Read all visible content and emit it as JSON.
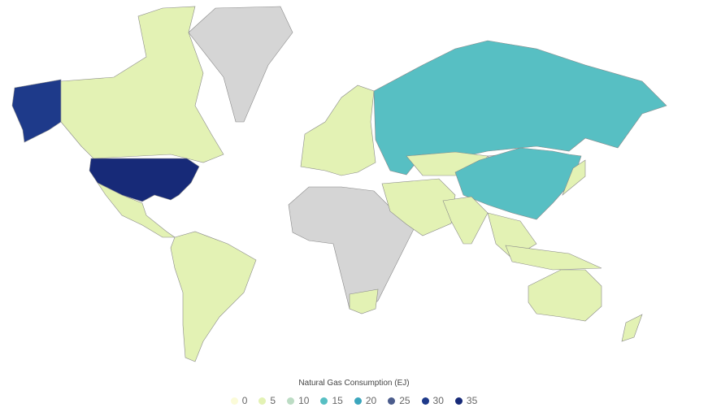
{
  "map": {
    "no_data_color": "#d5d5d5",
    "regions": [
      {
        "name": "Alaska",
        "bin": 30
      },
      {
        "name": "Canada",
        "bin": 5
      },
      {
        "name": "Greenland",
        "bin": null
      },
      {
        "name": "United States",
        "bin": 35
      },
      {
        "name": "Mexico & Central America",
        "bin": 5
      },
      {
        "name": "South America",
        "bin": 5
      },
      {
        "name": "Europe",
        "bin": 5
      },
      {
        "name": "Africa",
        "bin": null
      },
      {
        "name": "South Africa",
        "bin": 5
      },
      {
        "name": "Russia",
        "bin": 15
      },
      {
        "name": "Central Asia",
        "bin": 5
      },
      {
        "name": "Mongolia",
        "bin": null
      },
      {
        "name": "China",
        "bin": 15
      },
      {
        "name": "Middle East",
        "bin": 5
      },
      {
        "name": "India",
        "bin": 5
      },
      {
        "name": "Southeast Asia",
        "bin": 5
      },
      {
        "name": "Indonesia",
        "bin": 5
      },
      {
        "name": "Japan",
        "bin": 5
      },
      {
        "name": "Australia",
        "bin": 5
      },
      {
        "name": "New Zealand",
        "bin": 5
      }
    ]
  },
  "legend": {
    "title": "Natural Gas Consumption (EJ)",
    "items": [
      {
        "label": "0",
        "color": "#fbfbd8"
      },
      {
        "label": "5",
        "color": "#e3f2b4"
      },
      {
        "label": "10",
        "color": "#bcdcc4"
      },
      {
        "label": "15",
        "color": "#57bfc3"
      },
      {
        "label": "20",
        "color": "#3ba6bd"
      },
      {
        "label": "25",
        "color": "#4b5c8c"
      },
      {
        "label": "30",
        "color": "#1e3a8a"
      },
      {
        "label": "35",
        "color": "#172a78"
      }
    ]
  }
}
